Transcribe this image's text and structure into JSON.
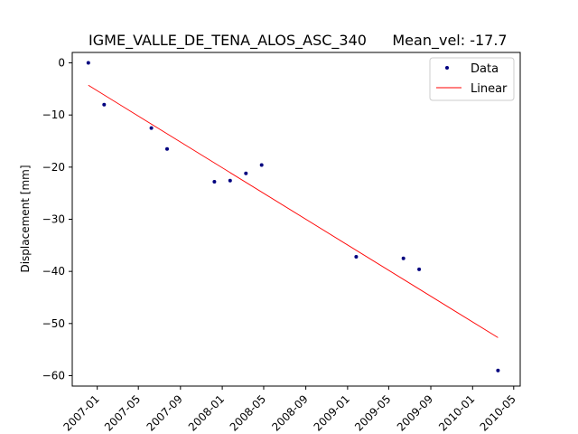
{
  "chart_data": {
    "type": "scatter",
    "title": "IGME_VALLE_DE_TENA_ALOS_ASC_340",
    "subtitle": "Mean_vel: -17.7",
    "xlabel": "",
    "ylabel": "Displacement [mm]",
    "xlim": [
      "2006-10-20",
      "2010-05-20"
    ],
    "ylim": [
      -62,
      2
    ],
    "x_ticks": [
      "2007-01",
      "2007-05",
      "2007-09",
      "2008-01",
      "2008-05",
      "2008-09",
      "2009-01",
      "2009-05",
      "2009-09",
      "2010-01",
      "2010-05"
    ],
    "y_ticks": [
      0,
      -10,
      -20,
      -30,
      -40,
      -50,
      -60
    ],
    "grid": false,
    "legend_position": "top-right",
    "series": [
      {
        "name": "Data",
        "kind": "markers",
        "color": "#00007f",
        "points": [
          {
            "x": "2006-12-06",
            "y": 0
          },
          {
            "x": "2007-01-21",
            "y": -8
          },
          {
            "x": "2007-06-08",
            "y": -12.5
          },
          {
            "x": "2007-07-24",
            "y": -16.5
          },
          {
            "x": "2007-12-09",
            "y": -22.8
          },
          {
            "x": "2008-01-24",
            "y": -22.6
          },
          {
            "x": "2008-03-10",
            "y": -21.2
          },
          {
            "x": "2008-04-25",
            "y": -19.6
          },
          {
            "x": "2009-01-26",
            "y": -37.2
          },
          {
            "x": "2009-06-13",
            "y": -37.5
          },
          {
            "x": "2009-07-29",
            "y": -39.6
          },
          {
            "x": "2010-03-16",
            "y": -59
          }
        ]
      },
      {
        "name": "Linear",
        "kind": "line",
        "color": "#ff0000",
        "points": [
          {
            "x": "2006-12-06",
            "y": -4.3
          },
          {
            "x": "2010-03-16",
            "y": -52.7
          }
        ]
      }
    ]
  }
}
